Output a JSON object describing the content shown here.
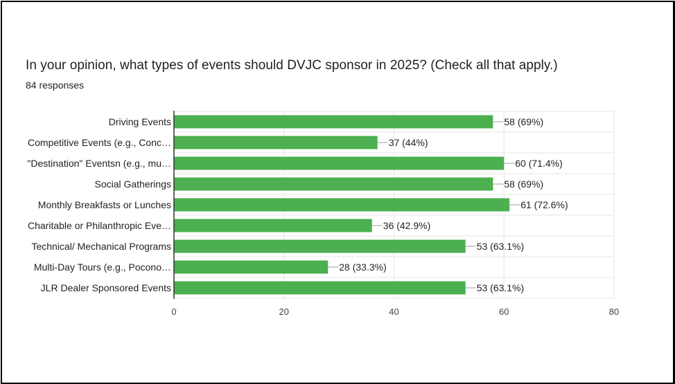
{
  "title": "In your opinion, what types of events should DVJC sponsor in 2025? (Check all that apply.)",
  "subtitle": "84 responses",
  "colors": {
    "bar": "#4caf50",
    "grid": "#e6e6e6",
    "axis": "#333333",
    "leader": "#9e9e9e",
    "frame": "#000000"
  },
  "chart_data": {
    "type": "bar",
    "orientation": "horizontal",
    "categories": [
      "Driving Events",
      "Competitive Events (e.g., Conc…",
      "\"Destination\" Eventsn (e.g., mu…",
      "Social Gatherings",
      "Monthly Breakfasts or Lunches",
      "Charitable or Philanthropic Eve…",
      "Technical/ Mechanical Programs",
      "Multi-Day Tours (e.g., Pocono…",
      "JLR Dealer Sponsored Events"
    ],
    "values": [
      58,
      37,
      60,
      58,
      61,
      36,
      53,
      28,
      53
    ],
    "value_labels": [
      "58 (69%)",
      "37 (44%)",
      "60 (71.4%)",
      "58 (69%)",
      "61 (72.6%)",
      "36 (42.9%)",
      "53 (63.1%)",
      "28 (33.3%)",
      "53 (63.1%)"
    ],
    "xlim": [
      0,
      80
    ],
    "xticks": [
      0,
      20,
      40,
      60,
      80
    ],
    "grid": true,
    "legend": "none",
    "xlabel": "",
    "ylabel": ""
  }
}
